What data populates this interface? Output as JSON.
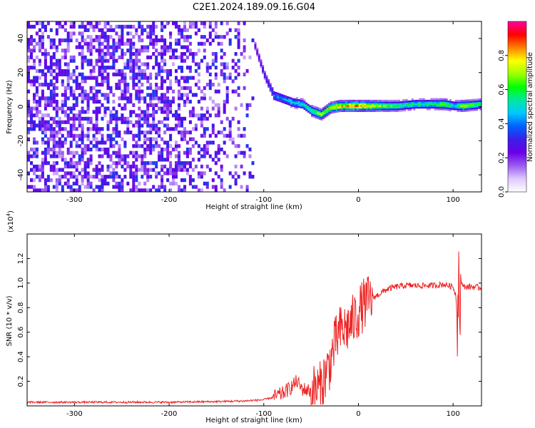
{
  "title": "C2E1.2024.189.09.16.G04",
  "chart_data": [
    {
      "type": "heatmap",
      "xlabel": "Height of straight line (km)",
      "ylabel": "Frequency (Hz)",
      "xlim": [
        -350,
        130
      ],
      "ylim": [
        -50,
        50
      ],
      "xticks": [
        -300,
        -200,
        -100,
        0,
        100
      ],
      "yticks": [
        -40,
        -20,
        0,
        20,
        40
      ],
      "colorbar": {
        "label": "Normalized spectral amplitude",
        "range": [
          0,
          1
        ],
        "ticks": [
          0.0,
          0.2,
          0.4,
          0.6,
          0.8
        ],
        "colormap": [
          "#ffffff",
          "#e0c8ff",
          "#9a5cf0",
          "#6a00e8",
          "#3b1ee8",
          "#0060ff",
          "#00c8ff",
          "#00e8a0",
          "#00ff00",
          "#a0ff00",
          "#ffff00",
          "#ff8000",
          "#ff0000",
          "#ff00a0"
        ]
      },
      "noise_region": {
        "x": [
          -350,
          -110
        ],
        "frequency": [
          -50,
          50
        ],
        "amplitude": [
          0.1,
          0.35
        ]
      },
      "ridge": {
        "x": [
          -110,
          -100,
          -90,
          -80,
          -70,
          -60,
          -50,
          -40,
          -30,
          -20,
          -10,
          0,
          20,
          40,
          60,
          80,
          90,
          100,
          110,
          130
        ],
        "frequency": [
          35,
          18,
          6,
          4,
          2,
          1,
          -3,
          -5,
          -1,
          0,
          0,
          0,
          0,
          0,
          1,
          1,
          1,
          0,
          0,
          1
        ],
        "amplitude": [
          0.25,
          0.3,
          0.4,
          0.48,
          0.5,
          0.55,
          0.6,
          0.7,
          0.78,
          0.8,
          0.82,
          0.85,
          0.7,
          0.6,
          0.55,
          0.55,
          0.7,
          0.5,
          0.75,
          0.55
        ]
      }
    },
    {
      "type": "line",
      "xlabel": "Height of straight line (km)",
      "ylabel": "SNR (10 * v/v)",
      "yscale_label": "(x10",
      "yscale_exp": "4",
      "yscale_close": ")",
      "xlim": [
        -350,
        130
      ],
      "ylim": [
        0,
        1.4
      ],
      "xticks": [
        -300,
        -200,
        -100,
        0,
        100
      ],
      "yticks": [
        0.2,
        0.4,
        0.6,
        0.8,
        1.0,
        1.2
      ],
      "color": "#ee2222",
      "series": [
        {
          "x": [
            -350,
            -300,
            -250,
            -200,
            -150,
            -120,
            -100,
            -90,
            -80,
            -70,
            -65,
            -60,
            -50,
            -40,
            -30,
            -25,
            -20,
            -15,
            -10,
            -5,
            0,
            5,
            10,
            15,
            20,
            30,
            40,
            50,
            60,
            70,
            80,
            90,
            95,
            100,
            103,
            105,
            107,
            110,
            120,
            130
          ],
          "y": [
            0.03,
            0.03,
            0.03,
            0.03,
            0.035,
            0.04,
            0.05,
            0.07,
            0.1,
            0.16,
            0.2,
            0.14,
            0.12,
            0.15,
            0.35,
            0.5,
            0.6,
            0.62,
            0.65,
            0.7,
            0.76,
            0.82,
            0.85,
            0.88,
            0.9,
            0.95,
            0.97,
            0.98,
            0.98,
            0.98,
            0.98,
            0.99,
            0.98,
            0.97,
            0.9,
            0.6,
            1.1,
            0.97,
            0.97,
            0.96
          ]
        }
      ]
    }
  ]
}
